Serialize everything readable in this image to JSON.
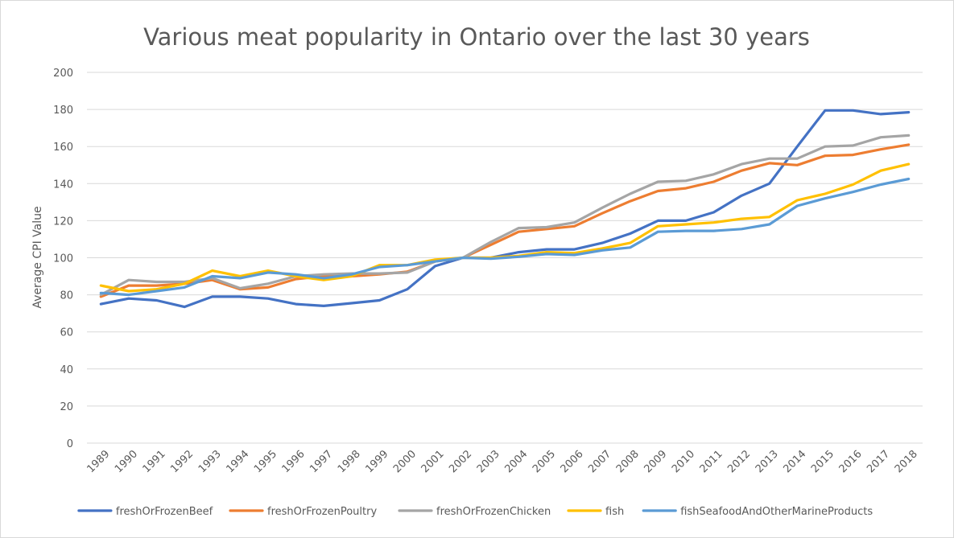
{
  "chart_data": {
    "type": "line",
    "title": "Various meat popularity in Ontario over the last 30 years",
    "xlabel": "",
    "ylabel": "Average CPI Value",
    "ylim": [
      0,
      200
    ],
    "yticks": [
      0,
      20,
      40,
      60,
      80,
      100,
      120,
      140,
      160,
      180,
      200
    ],
    "grid": true,
    "legend_position": "bottom",
    "x": [
      "1989",
      "1990",
      "1991",
      "1992",
      "1993",
      "1994",
      "1995",
      "1996",
      "1997",
      "1998",
      "1999",
      "2000",
      "2001",
      "2002",
      "2003",
      "2004",
      "2005",
      "2006",
      "2007",
      "2008",
      "2009",
      "2010",
      "2011",
      "2012",
      "2013",
      "2014",
      "2015",
      "2016",
      "2017",
      "2018"
    ],
    "series": [
      {
        "name": "freshOrFrozenBeef",
        "color": "#4472c4",
        "values": [
          75,
          78,
          77,
          73.5,
          79,
          79,
          78,
          75,
          74,
          75.5,
          77,
          83,
          95.5,
          100,
          100,
          103,
          104.5,
          104.5,
          108,
          113,
          120,
          120,
          124.5,
          133.5,
          140,
          160,
          179.5,
          179.5,
          177.5,
          178.5
        ]
      },
      {
        "name": "freshOrFrozenPoultry",
        "color": "#ed7d31",
        "values": [
          79,
          85,
          85,
          86,
          88,
          83,
          84,
          88.5,
          90,
          90,
          91,
          92.5,
          98,
          100,
          107,
          114,
          115.5,
          117,
          124,
          130.5,
          136,
          137.5,
          141,
          147,
          151,
          150,
          155,
          155.5,
          158.5,
          161
        ]
      },
      {
        "name": "freshOrFrozenChicken",
        "color": "#a5a5a5",
        "values": [
          80,
          88,
          87,
          87,
          89,
          83.5,
          86,
          90,
          91,
          91.5,
          91.5,
          92,
          98,
          100,
          108.5,
          116,
          116.5,
          119,
          127,
          134.5,
          141,
          141.5,
          145,
          150.5,
          153.5,
          153.5,
          160,
          160.5,
          165,
          166
        ]
      },
      {
        "name": "fish",
        "color": "#ffc000",
        "values": [
          85,
          82,
          83,
          86,
          93,
          90,
          93,
          90,
          88,
          90,
          96,
          96,
          99,
          100,
          100,
          101,
          103,
          102.5,
          105,
          108,
          117,
          118,
          119,
          121,
          122,
          131,
          134.5,
          139.5,
          147,
          150.5
        ]
      },
      {
        "name": "fishSeafoodAndOtherMarineProducts",
        "color": "#5b9bd5",
        "values": [
          81,
          80,
          82,
          84,
          90,
          89,
          92,
          91,
          89,
          91,
          95,
          96,
          98,
          100,
          99.5,
          100.5,
          102,
          101.5,
          104,
          105.5,
          114,
          114.5,
          114.5,
          115.5,
          118,
          128,
          132,
          135.5,
          139.5,
          142.5
        ]
      }
    ]
  }
}
